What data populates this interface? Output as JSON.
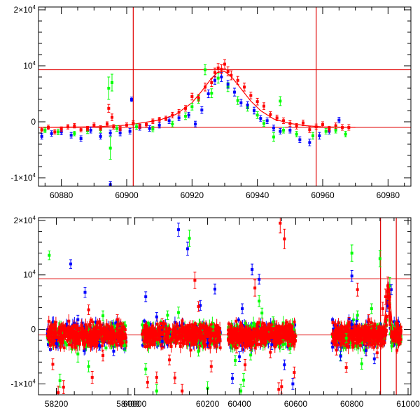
{
  "chart_data": [
    {
      "type": "scatter",
      "title": "",
      "xlabel": "",
      "ylabel": "",
      "xlim": [
        60873,
        60987
      ],
      "ylim": [
        -11500,
        20500
      ],
      "grid": false,
      "yticks": [
        {
          "value": 20000,
          "mant": "2×10",
          "exp": "4"
        },
        {
          "value": 10000,
          "mant": "10",
          "exp": "4"
        },
        {
          "value": 0,
          "mant": "0",
          "exp": ""
        },
        {
          "value": -10000,
          "mant": "-1×10",
          "exp": "4"
        }
      ],
      "xticks": [
        {
          "value": 60880,
          "label": "60880"
        },
        {
          "value": 60900,
          "label": "60900"
        },
        {
          "value": 60920,
          "label": "60920"
        },
        {
          "value": 60940,
          "label": "60940"
        },
        {
          "value": 60960,
          "label": "60960"
        },
        {
          "value": 60980,
          "label": "60980"
        }
      ],
      "reference_lines": {
        "horizontal": [
          9300,
          -1000
        ],
        "vertical": [
          60902,
          60958
        ]
      },
      "model_curve": {
        "color": "#ff0000",
        "x": [
          60873,
          60890,
          60900,
          60910,
          60915,
          60920,
          60923,
          60926,
          60928,
          60930,
          60932,
          60935,
          60938,
          60941,
          60945,
          60950,
          60955,
          60960,
          60970
        ],
        "y": [
          -1000,
          -900,
          -600,
          300,
          1300,
          3400,
          5500,
          7800,
          8900,
          9000,
          8100,
          5900,
          3700,
          2000,
          500,
          -300,
          -700,
          -900,
          -1000
        ]
      },
      "series": [
        {
          "name": "green",
          "color": "#00ff00",
          "x": [
            60875,
            60879,
            60884,
            60888,
            60892,
            60894.5,
            60895,
            60895.5,
            60897,
            60903,
            60908,
            60914,
            60918,
            60920,
            60922,
            60924,
            60926,
            60928,
            60931,
            60934,
            60937,
            60940,
            60942,
            60945,
            60947,
            60948,
            60952,
            60957,
            60961,
            60964,
            60967
          ],
          "y": [
            -1500,
            -1800,
            -2100,
            -1600,
            -1400,
            6000,
            -4700,
            7000,
            -1200,
            -900,
            -1300,
            -400,
            1000,
            2700,
            4000,
            9300,
            5100,
            7800,
            6200,
            3800,
            2500,
            1200,
            -300,
            -2700,
            3700,
            -1500,
            -2200,
            -2500,
            -1700,
            -1500,
            -2200
          ],
          "err": [
            400,
            500,
            400,
            500,
            500,
            2000,
            2000,
            1500,
            500,
            500,
            500,
            500,
            600,
            600,
            700,
            900,
            800,
            900,
            800,
            700,
            600,
            600,
            500,
            800,
            800,
            500,
            500,
            600,
            500,
            500,
            500
          ]
        },
        {
          "name": "blue",
          "color": "#0000ff",
          "x": [
            60874,
            60877,
            60880,
            60883,
            60886,
            60889,
            60892,
            60895,
            60898,
            60901,
            60904,
            60907,
            60910,
            60913,
            60916,
            60919,
            60921,
            60923,
            60925,
            60927,
            60929,
            60931,
            60933,
            60935,
            60937,
            60939,
            60941,
            60943,
            60945,
            60947,
            60950,
            60953,
            60956,
            60959,
            60962,
            60965,
            60901.5,
            60895
          ],
          "y": [
            -2600,
            -2100,
            -1800,
            -2400,
            -3000,
            -1500,
            -2600,
            -2000,
            -2000,
            -1700,
            -1000,
            -1200,
            -600,
            200,
            700,
            1200,
            -400,
            2100,
            5000,
            7400,
            8000,
            6700,
            5300,
            3400,
            3000,
            2000,
            600,
            200,
            -1100,
            -1700,
            -1500,
            -3200,
            -3700,
            -2500,
            -1700,
            300,
            4000,
            -11200
          ],
          "err": [
            500,
            500,
            500,
            500,
            500,
            500,
            500,
            500,
            500,
            500,
            500,
            500,
            500,
            500,
            500,
            500,
            500,
            600,
            700,
            700,
            800,
            700,
            700,
            600,
            600,
            600,
            500,
            500,
            500,
            500,
            500,
            500,
            600,
            600,
            500,
            500,
            400,
            500
          ]
        },
        {
          "name": "red",
          "color": "#ff0000",
          "x": [
            60874,
            60876,
            60878,
            60880,
            60882,
            60884,
            60886,
            60888,
            60890,
            60892,
            60894,
            60896,
            60898,
            60900,
            60902,
            60904,
            60906,
            60908,
            60910,
            60912,
            60914,
            60916,
            60918,
            60920,
            60922,
            60924,
            60926,
            60927,
            60928,
            60929,
            60930,
            60931,
            60932,
            60934,
            60936,
            60938,
            60940,
            60942,
            60944,
            60946,
            60948,
            60950,
            60952,
            60954,
            60956,
            60958,
            60960,
            60962,
            60964,
            60966,
            60968,
            60895.5,
            60894.5
          ],
          "y": [
            -1400,
            -1000,
            -1800,
            -1300,
            -900,
            -700,
            -1400,
            -1200,
            -600,
            -1100,
            -400,
            -900,
            -1200,
            -600,
            -200,
            -800,
            -500,
            100,
            400,
            600,
            1200,
            1700,
            2400,
            4500,
            4300,
            6200,
            7000,
            8800,
            9600,
            9400,
            10300,
            9000,
            8300,
            7400,
            6200,
            4700,
            3600,
            2800,
            1300,
            700,
            200,
            -300,
            -800,
            -200,
            -1400,
            -900,
            -500,
            -1300,
            -700,
            -1000,
            -1000,
            800,
            2400
          ],
          "err": [
            400,
            400,
            400,
            400,
            400,
            400,
            400,
            400,
            400,
            400,
            400,
            400,
            400,
            400,
            400,
            400,
            400,
            400,
            400,
            400,
            500,
            500,
            500,
            600,
            600,
            700,
            700,
            800,
            800,
            800,
            800,
            800,
            800,
            700,
            700,
            600,
            600,
            600,
            500,
            500,
            500,
            500,
            500,
            500,
            500,
            500,
            500,
            500,
            500,
            500,
            500,
            600,
            700
          ]
        }
      ]
    },
    {
      "type": "scatter",
      "title": "",
      "xlabel": "",
      "ylabel": "",
      "ylim": [
        -12000,
        20500
      ],
      "grid": false,
      "broken_x_axis": true,
      "x_segments": [
        [
          58150,
          58410
        ],
        [
          59995,
          60245
        ],
        [
          60345,
          61010
        ]
      ],
      "yticks": [
        {
          "value": 20000,
          "mant": "2×10",
          "exp": "4"
        },
        {
          "value": 10000,
          "mant": "10",
          "exp": "4"
        },
        {
          "value": 0,
          "mant": "0",
          "exp": ""
        },
        {
          "value": -10000,
          "mant": "-1×10",
          "exp": "4"
        }
      ],
      "xticks": [
        {
          "value": 58200,
          "label": "58200"
        },
        {
          "value": 58400,
          "label": "58400"
        },
        {
          "value": 60000,
          "label": "60000"
        },
        {
          "value": 60200,
          "label": "60200"
        },
        {
          "value": 60400,
          "label": "60400"
        },
        {
          "value": 60600,
          "label": "60600"
        },
        {
          "value": 60800,
          "label": "60800"
        },
        {
          "value": 61000,
          "label": "61000"
        }
      ],
      "reference_lines": {
        "horizontal": [
          9300,
          -1000
        ],
        "vertical": [
          60902,
          60958
        ]
      },
      "seasons": [
        {
          "start": 58175,
          "end": 58395
        },
        {
          "start": 60020,
          "end": 60235
        },
        {
          "start": 60360,
          "end": 60600
        },
        {
          "start": 60730,
          "end": 60975
        }
      ],
      "model_curve": {
        "color": "#ff0000",
        "x": [
          60870,
          60900,
          60915,
          60922,
          60928,
          60934,
          60942,
          60955,
          60975
        ],
        "y": [
          -1000,
          -600,
          1300,
          4300,
          8900,
          6800,
          1800,
          -700,
          -1000
        ]
      },
      "series": [
        {
          "name": "green",
          "color": "#00ff00",
          "x": [
            58180,
            58260,
            58330,
            58390,
            58290,
            58210,
            60030,
            60060,
            60120,
            60150,
            60175,
            60200,
            60090,
            60215,
            60385,
            60415,
            60440,
            60470,
            60520,
            60555,
            60580,
            60405,
            60480,
            60760,
            60800,
            60835,
            60870,
            60900,
            60935,
            60780,
            60820
          ],
          "y": [
            13600,
            -4500,
            2500,
            -3000,
            -6800,
            -9400,
            -7300,
            -11300,
            3100,
            16700,
            -4000,
            -10800,
            2600,
            500,
            -5700,
            -9300,
            -4700,
            5200,
            1400,
            -2800,
            -3500,
            -11300,
            3000,
            -4800,
            14000,
            -6300,
            3800,
            13000,
            8000,
            -1600,
            2600
          ],
          "err": [
            800,
            1500,
            900,
            900,
            1000,
            1200,
            1000,
            1200,
            1000,
            1500,
            900,
            1200,
            800,
            800,
            900,
            1200,
            900,
            1000,
            900,
            900,
            900,
            1200,
            900,
            900,
            1500,
            1000,
            900,
            1500,
            1500,
            800,
            800
          ]
        },
        {
          "name": "blue",
          "color": "#0000ff",
          "x": [
            58200,
            58240,
            58280,
            58320,
            58360,
            58260,
            60030,
            60075,
            60120,
            60145,
            60180,
            60220,
            60060,
            60200,
            60375,
            60410,
            60445,
            60470,
            60515,
            60560,
            60590,
            60400,
            60760,
            60800,
            60850,
            60880,
            60925,
            60800,
            60940
          ],
          "y": [
            -2600,
            12000,
            6800,
            -3000,
            -4000,
            1800,
            6000,
            -2200,
            18300,
            14800,
            4400,
            7400,
            2300,
            -2500,
            -9000,
            3800,
            11000,
            9200,
            -2800,
            -6500,
            -10000,
            -5000,
            -4900,
            9800,
            -3900,
            -5400,
            4300,
            900,
            7300
          ],
          "err": [
            800,
            800,
            900,
            800,
            800,
            800,
            900,
            900,
            1200,
            1200,
            900,
            900,
            800,
            800,
            900,
            900,
            1000,
            900,
            900,
            900,
            1000,
            900,
            900,
            1000,
            900,
            900,
            1000,
            800,
            900
          ]
        },
        {
          "name": "red",
          "color": "#ff0000",
          "x": [
            58190,
            58220,
            58250,
            58290,
            58330,
            58370,
            58205,
            58300,
            60035,
            60060,
            60095,
            60130,
            60165,
            60210,
            60110,
            60075,
            60175,
            60390,
            60420,
            60455,
            60480,
            60510,
            60540,
            60545,
            60560,
            60595,
            60440,
            60550,
            60745,
            60790,
            60820,
            60860,
            60890,
            60910,
            60920,
            60928,
            60935,
            60950,
            60780,
            60800
          ],
          "y": [
            -6400,
            -10600,
            -2600,
            3600,
            -4800,
            1800,
            -11600,
            -8800,
            -9700,
            -8800,
            -5600,
            -11300,
            9000,
            -6800,
            -8900,
            1100,
            4200,
            -3400,
            -6500,
            7600,
            -2300,
            -4200,
            -11000,
            19500,
            16600,
            -7900,
            -3000,
            -10500,
            -3800,
            1300,
            7300,
            1800,
            -4300,
            3800,
            6000,
            8000,
            6000,
            -500,
            -7000,
            -2000
          ],
          "err": [
            1000,
            1200,
            900,
            900,
            1000,
            900,
            1200,
            1100,
            1000,
            1000,
            900,
            1200,
            1500,
            1000,
            1000,
            900,
            900,
            900,
            1000,
            1500,
            900,
            1000,
            1200,
            1800,
            1800,
            1000,
            900,
            1200,
            900,
            900,
            1200,
            900,
            900,
            1200,
            1400,
            1600,
            1400,
            900,
            900,
            900
          ]
        }
      ]
    }
  ]
}
